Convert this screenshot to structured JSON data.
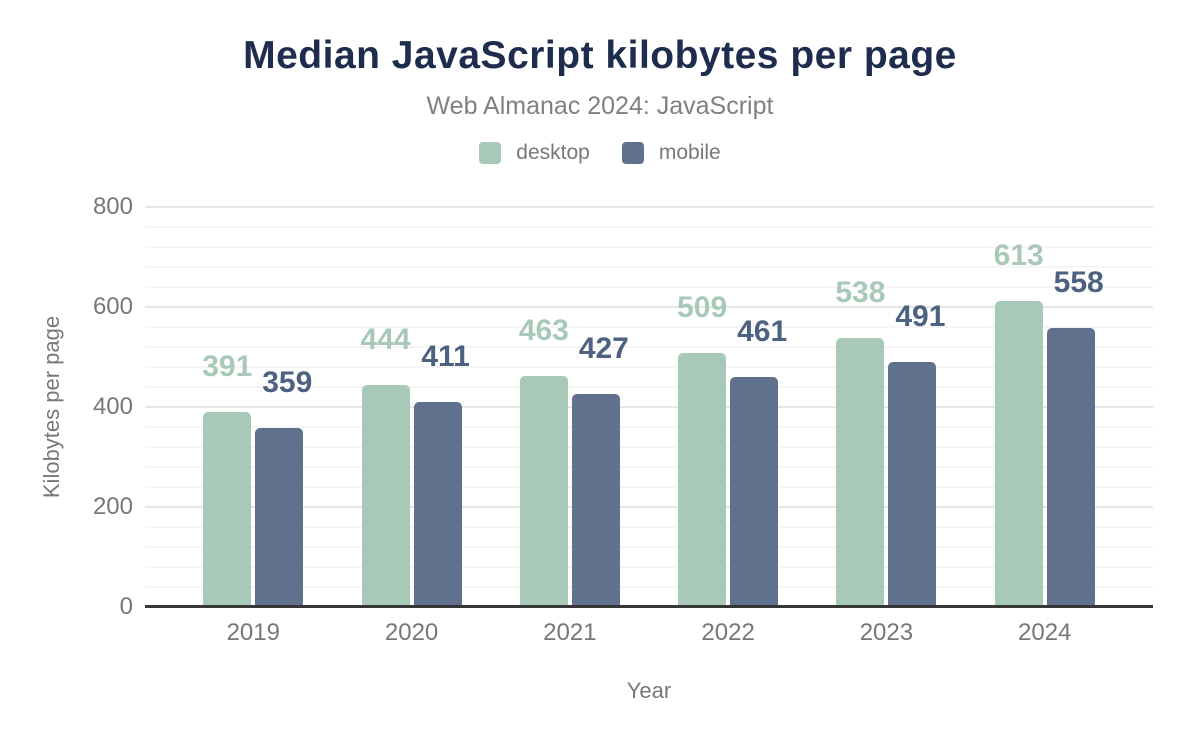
{
  "title": "Median JavaScript kilobytes per page",
  "subtitle": "Web Almanac 2024: JavaScript",
  "legend": [
    {
      "label": "desktop",
      "color": "#a8c9b8"
    },
    {
      "label": "mobile",
      "color": "#5f718c"
    }
  ],
  "colors": {
    "title_navy": "#1e2c4e",
    "subtitle_gray": "#7e8084",
    "desktop_green": "#a8c9b8",
    "mobile_slate": "#5f718c",
    "mobile_label": "#4d6181",
    "axis_line": "#373737",
    "major_gridline": "#e5e5e5",
    "minor_gridline": "#f5f5f5"
  },
  "chart_data": {
    "type": "bar",
    "title": "Median JavaScript kilobytes per page",
    "subtitle": "Web Almanac 2024: JavaScript",
    "xlabel": "Year",
    "ylabel": "Kilobytes per page",
    "categories": [
      "2019",
      "2020",
      "2021",
      "2022",
      "2023",
      "2024"
    ],
    "series": [
      {
        "name": "desktop",
        "color": "#a8c9b8",
        "label_color": "#a8c9b8",
        "values": [
          391,
          444,
          463,
          509,
          538,
          613
        ]
      },
      {
        "name": "mobile",
        "color": "#5f718c",
        "label_color": "#4d6181",
        "values": [
          359,
          411,
          427,
          461,
          491,
          558
        ]
      }
    ],
    "ylim": [
      0,
      800
    ],
    "yticks": [
      0,
      200,
      400,
      600,
      800
    ],
    "minor_grid_step": 40,
    "grid": true,
    "legend_position": "top",
    "bar_value_labels": true
  }
}
